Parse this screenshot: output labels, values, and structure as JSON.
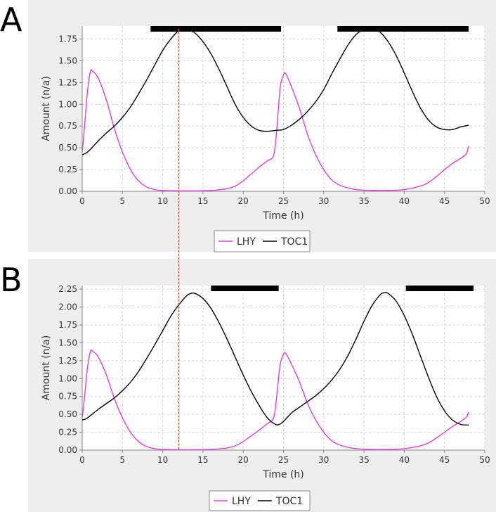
{
  "chart_data": [
    {
      "panel_label": "A",
      "type": "line",
      "xlabel": "Time (h)",
      "ylabel": "Amount (n/a)",
      "xlim": [
        0,
        50
      ],
      "ylim": [
        0,
        1.9
      ],
      "xticks": [
        0,
        5,
        10,
        15,
        20,
        25,
        30,
        35,
        40,
        45,
        50
      ],
      "yticks": [
        0.0,
        0.25,
        0.5,
        0.75,
        1.0,
        1.25,
        1.5,
        1.75
      ],
      "grid": true,
      "legend": "bottom-center",
      "dark_periods": [
        [
          8.5,
          24.7
        ],
        [
          31.7,
          48
        ]
      ],
      "series": [
        {
          "name": "LHY",
          "color": "#e040e0",
          "points": [
            [
              0,
              0.45
            ],
            [
              0.3,
              0.75
            ],
            [
              0.6,
              1.1
            ],
            [
              1,
              1.37
            ],
            [
              1.3,
              1.38
            ],
            [
              2,
              1.3
            ],
            [
              3,
              1.05
            ],
            [
              4,
              0.72
            ],
            [
              5,
              0.45
            ],
            [
              6,
              0.25
            ],
            [
              7,
              0.12
            ],
            [
              8,
              0.05
            ],
            [
              9,
              0.02
            ],
            [
              10,
              0.01
            ],
            [
              12,
              0.005
            ],
            [
              14,
              0.005
            ],
            [
              16,
              0.01
            ],
            [
              18,
              0.03
            ],
            [
              19,
              0.06
            ],
            [
              20,
              0.12
            ],
            [
              21,
              0.2
            ],
            [
              22,
              0.28
            ],
            [
              23,
              0.35
            ],
            [
              23.8,
              0.42
            ],
            [
              24.2,
              0.75
            ],
            [
              24.6,
              1.2
            ],
            [
              25,
              1.34
            ],
            [
              25.3,
              1.35
            ],
            [
              26,
              1.2
            ],
            [
              27,
              0.95
            ],
            [
              28,
              0.65
            ],
            [
              29,
              0.42
            ],
            [
              30,
              0.25
            ],
            [
              31,
              0.13
            ],
            [
              32,
              0.07
            ],
            [
              33,
              0.04
            ],
            [
              34,
              0.02
            ],
            [
              36,
              0.01
            ],
            [
              38,
              0.01
            ],
            [
              40,
              0.02
            ],
            [
              42,
              0.06
            ],
            [
              43,
              0.1
            ],
            [
              44,
              0.17
            ],
            [
              45,
              0.25
            ],
            [
              46,
              0.32
            ],
            [
              47,
              0.38
            ],
            [
              47.7,
              0.43
            ],
            [
              48,
              0.52
            ]
          ]
        },
        {
          "name": "TOC1",
          "color": "#000000",
          "points": [
            [
              0,
              0.42
            ],
            [
              0.5,
              0.44
            ],
            [
              1,
              0.48
            ],
            [
              2,
              0.58
            ],
            [
              3,
              0.67
            ],
            [
              4,
              0.75
            ],
            [
              5,
              0.85
            ],
            [
              6,
              0.97
            ],
            [
              7,
              1.12
            ],
            [
              8,
              1.28
            ],
            [
              9,
              1.45
            ],
            [
              10,
              1.62
            ],
            [
              11,
              1.75
            ],
            [
              12,
              1.85
            ],
            [
              12.5,
              1.87
            ],
            [
              13,
              1.86
            ],
            [
              14,
              1.82
            ],
            [
              15,
              1.72
            ],
            [
              16,
              1.58
            ],
            [
              17,
              1.4
            ],
            [
              18,
              1.2
            ],
            [
              19,
              1.0
            ],
            [
              20,
              0.85
            ],
            [
              21,
              0.75
            ],
            [
              22,
              0.7
            ],
            [
              23,
              0.69
            ],
            [
              24,
              0.7
            ],
            [
              25,
              0.71
            ],
            [
              26,
              0.76
            ],
            [
              27,
              0.83
            ],
            [
              28,
              0.92
            ],
            [
              29,
              1.03
            ],
            [
              30,
              1.17
            ],
            [
              31,
              1.35
            ],
            [
              32,
              1.52
            ],
            [
              33,
              1.68
            ],
            [
              34,
              1.8
            ],
            [
              35,
              1.86
            ],
            [
              36,
              1.87
            ],
            [
              37,
              1.83
            ],
            [
              38,
              1.72
            ],
            [
              39,
              1.56
            ],
            [
              40,
              1.36
            ],
            [
              41,
              1.15
            ],
            [
              42,
              0.96
            ],
            [
              43,
              0.82
            ],
            [
              44,
              0.74
            ],
            [
              45,
              0.71
            ],
            [
              46,
              0.71
            ],
            [
              47,
              0.74
            ],
            [
              48,
              0.76
            ]
          ]
        }
      ]
    },
    {
      "panel_label": "B",
      "type": "line",
      "xlabel": "Time (h)",
      "ylabel": "Amount (n/a)",
      "xlim": [
        0,
        50
      ],
      "ylim": [
        0,
        2.3
      ],
      "xticks": [
        0,
        5,
        10,
        15,
        20,
        25,
        30,
        35,
        40,
        45,
        50
      ],
      "yticks": [
        0.0,
        0.25,
        0.5,
        0.75,
        1.0,
        1.25,
        1.5,
        1.75,
        2.0,
        2.25
      ],
      "grid": true,
      "legend": "bottom-center",
      "dark_periods": [
        [
          16,
          24.4
        ],
        [
          40.2,
          48.6
        ]
      ],
      "series": [
        {
          "name": "LHY",
          "color": "#e040e0",
          "points": [
            [
              0,
              0.45
            ],
            [
              0.3,
              0.75
            ],
            [
              0.6,
              1.1
            ],
            [
              1,
              1.37
            ],
            [
              1.3,
              1.38
            ],
            [
              2,
              1.3
            ],
            [
              3,
              1.05
            ],
            [
              4,
              0.72
            ],
            [
              5,
              0.45
            ],
            [
              6,
              0.25
            ],
            [
              7,
              0.12
            ],
            [
              8,
              0.05
            ],
            [
              9,
              0.02
            ],
            [
              10,
              0.01
            ],
            [
              12,
              0.005
            ],
            [
              14,
              0.005
            ],
            [
              16,
              0.01
            ],
            [
              18,
              0.03
            ],
            [
              19,
              0.06
            ],
            [
              20,
              0.12
            ],
            [
              21,
              0.2
            ],
            [
              22,
              0.28
            ],
            [
              23,
              0.37
            ],
            [
              23.8,
              0.46
            ],
            [
              24.2,
              0.8
            ],
            [
              24.6,
              1.2
            ],
            [
              25,
              1.34
            ],
            [
              25.3,
              1.35
            ],
            [
              26,
              1.2
            ],
            [
              27,
              0.95
            ],
            [
              28,
              0.65
            ],
            [
              29,
              0.42
            ],
            [
              30,
              0.25
            ],
            [
              31,
              0.13
            ],
            [
              32,
              0.07
            ],
            [
              33,
              0.04
            ],
            [
              34,
              0.02
            ],
            [
              36,
              0.01
            ],
            [
              38,
              0.01
            ],
            [
              40,
              0.02
            ],
            [
              42,
              0.06
            ],
            [
              43,
              0.1
            ],
            [
              44,
              0.17
            ],
            [
              45,
              0.25
            ],
            [
              46,
              0.33
            ],
            [
              47,
              0.4
            ],
            [
              47.7,
              0.46
            ],
            [
              48,
              0.53
            ]
          ]
        },
        {
          "name": "TOC1",
          "color": "#000000",
          "points": [
            [
              0,
              0.42
            ],
            [
              0.5,
              0.44
            ],
            [
              1,
              0.48
            ],
            [
              2,
              0.57
            ],
            [
              3,
              0.65
            ],
            [
              4,
              0.73
            ],
            [
              5,
              0.83
            ],
            [
              6,
              0.95
            ],
            [
              7,
              1.1
            ],
            [
              8,
              1.28
            ],
            [
              9,
              1.47
            ],
            [
              10,
              1.67
            ],
            [
              11,
              1.87
            ],
            [
              12,
              2.03
            ],
            [
              13,
              2.16
            ],
            [
              13.5,
              2.19
            ],
            [
              14,
              2.19
            ],
            [
              15,
              2.12
            ],
            [
              16,
              1.98
            ],
            [
              17,
              1.78
            ],
            [
              18,
              1.55
            ],
            [
              19,
              1.3
            ],
            [
              20,
              1.05
            ],
            [
              21,
              0.82
            ],
            [
              22,
              0.62
            ],
            [
              23,
              0.45
            ],
            [
              24,
              0.36
            ],
            [
              24.5,
              0.36
            ],
            [
              25,
              0.4
            ],
            [
              26,
              0.52
            ],
            [
              27,
              0.6
            ],
            [
              28,
              0.68
            ],
            [
              29,
              0.76
            ],
            [
              30,
              0.86
            ],
            [
              31,
              0.98
            ],
            [
              32,
              1.13
            ],
            [
              33,
              1.32
            ],
            [
              34,
              1.55
            ],
            [
              35,
              1.8
            ],
            [
              36,
              2.02
            ],
            [
              37,
              2.17
            ],
            [
              37.5,
              2.2
            ],
            [
              38,
              2.19
            ],
            [
              39,
              2.08
            ],
            [
              40,
              1.88
            ],
            [
              41,
              1.62
            ],
            [
              42,
              1.32
            ],
            [
              43,
              1.02
            ],
            [
              44,
              0.75
            ],
            [
              45,
              0.55
            ],
            [
              46,
              0.42
            ],
            [
              47,
              0.36
            ],
            [
              48,
              0.35
            ]
          ]
        }
      ]
    }
  ]
}
